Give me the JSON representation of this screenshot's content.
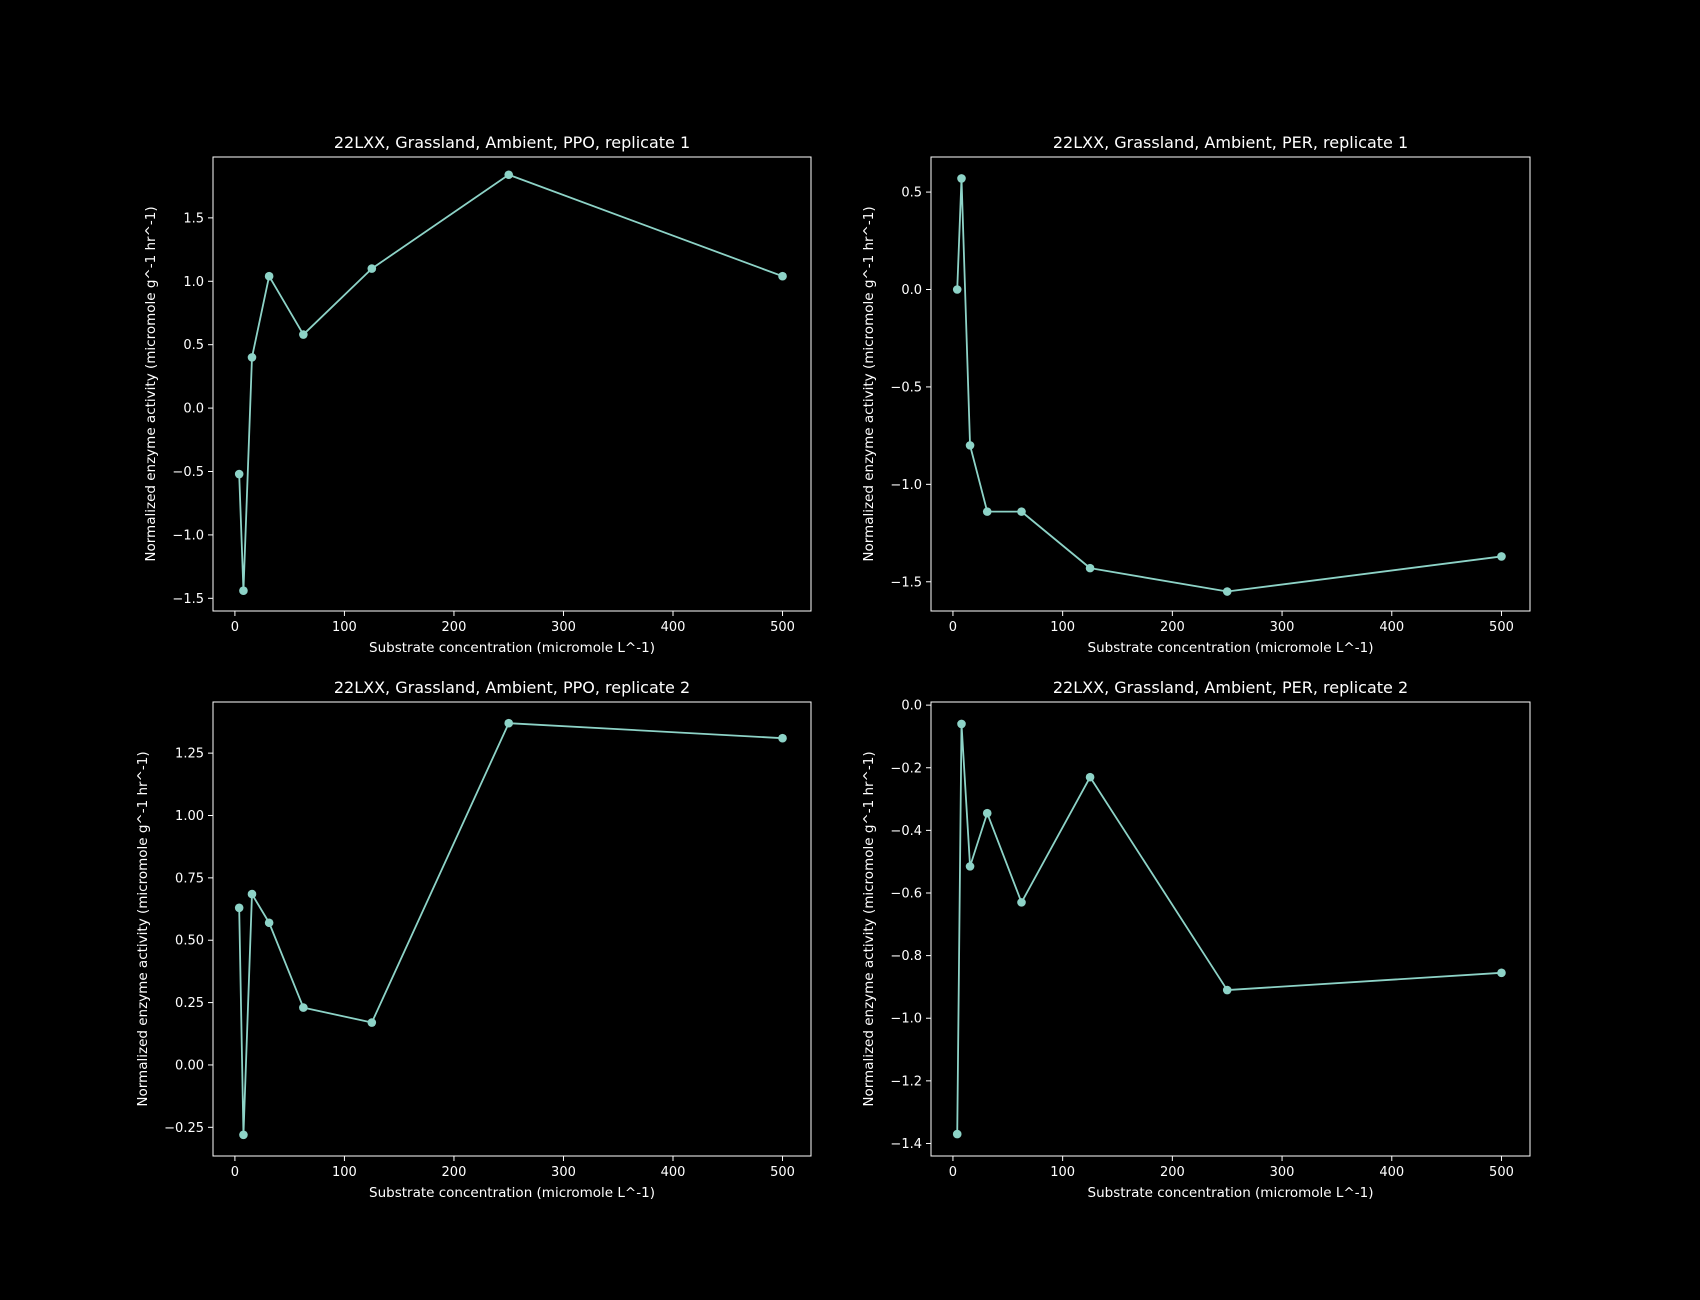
{
  "style": {
    "background": "#000000",
    "foreground": "#ffffff",
    "series_color": "#8dd3c7"
  },
  "chart_data": [
    {
      "type": "line",
      "title": "22LXX, Grassland, Ambient, PPO, replicate 1",
      "xlabel": "Substrate concentration (micromole L^-1)",
      "ylabel": "Normalized enzyme activity (micromole g^-1 hr^-1)",
      "xlim": [
        -20,
        526
      ],
      "ylim": [
        -1.6,
        1.98
      ],
      "xticks": [
        0,
        100,
        200,
        300,
        400,
        500
      ],
      "yticks": [
        -1.5,
        -1.0,
        -0.5,
        0.0,
        0.5,
        1.0,
        1.5
      ],
      "ytick_labels": [
        "−1.5",
        "−1.0",
        "−0.5",
        "0.0",
        "0.5",
        "1.0",
        "1.5"
      ],
      "grid": false,
      "marker": "circle",
      "x": [
        3.9,
        7.8,
        15.6,
        31.25,
        62.5,
        125,
        250,
        500
      ],
      "y": [
        -0.52,
        -1.44,
        0.4,
        1.04,
        0.58,
        1.1,
        1.84,
        1.04
      ]
    },
    {
      "type": "line",
      "title": "22LXX, Grassland, Ambient, PER, replicate 1",
      "xlabel": "Substrate concentration (micromole L^-1)",
      "ylabel": "Normalized enzyme activity (micromole g^-1 hr^-1)",
      "xlim": [
        -20,
        526
      ],
      "ylim": [
        -1.65,
        0.68
      ],
      "xticks": [
        0,
        100,
        200,
        300,
        400,
        500
      ],
      "yticks": [
        -1.5,
        -1.0,
        -0.5,
        0.0,
        0.5
      ],
      "ytick_labels": [
        "−1.5",
        "−1.0",
        "−0.5",
        "0.0",
        "0.5"
      ],
      "grid": false,
      "marker": "circle",
      "x": [
        3.9,
        7.8,
        15.6,
        31.25,
        62.5,
        125,
        250,
        500
      ],
      "y": [
        0.0,
        0.57,
        -0.8,
        -1.14,
        -1.14,
        -1.43,
        -1.55,
        -1.37
      ]
    },
    {
      "type": "line",
      "title": "22LXX, Grassland, Ambient, PPO, replicate 2",
      "xlabel": "Substrate concentration (micromole L^-1)",
      "ylabel": "Normalized enzyme activity (micromole g^-1 hr^-1)",
      "xlim": [
        -20,
        526
      ],
      "ylim": [
        -0.365,
        1.455
      ],
      "xticks": [
        0,
        100,
        200,
        300,
        400,
        500
      ],
      "yticks": [
        -0.25,
        0.0,
        0.25,
        0.5,
        0.75,
        1.0,
        1.25
      ],
      "ytick_labels": [
        "−0.25",
        "0.00",
        "0.25",
        "0.50",
        "0.75",
        "1.00",
        "1.25"
      ],
      "grid": false,
      "marker": "circle",
      "x": [
        3.9,
        7.8,
        15.6,
        31.25,
        62.5,
        125,
        250,
        500
      ],
      "y": [
        0.63,
        -0.28,
        0.685,
        0.57,
        0.23,
        0.17,
        1.37,
        1.31
      ]
    },
    {
      "type": "line",
      "title": "22LXX, Grassland, Ambient, PER, replicate 2",
      "xlabel": "Substrate concentration (micromole L^-1)",
      "ylabel": "Normalized enzyme activity (micromole g^-1 hr^-1)",
      "xlim": [
        -20,
        526
      ],
      "ylim": [
        -1.44,
        0.01
      ],
      "xticks": [
        0,
        100,
        200,
        300,
        400,
        500
      ],
      "yticks": [
        -1.4,
        -1.2,
        -1.0,
        -0.8,
        -0.6,
        -0.4,
        -0.2,
        0.0
      ],
      "ytick_labels": [
        "−1.4",
        "−1.2",
        "−1.0",
        "−0.8",
        "−0.6",
        "−0.4",
        "−0.2",
        "0.0"
      ],
      "grid": false,
      "marker": "circle",
      "x": [
        3.9,
        7.8,
        15.6,
        31.25,
        62.5,
        125,
        250,
        500
      ],
      "y": [
        -1.37,
        -0.06,
        -0.515,
        -0.345,
        -0.63,
        -0.23,
        -0.91,
        -0.855
      ]
    }
  ]
}
